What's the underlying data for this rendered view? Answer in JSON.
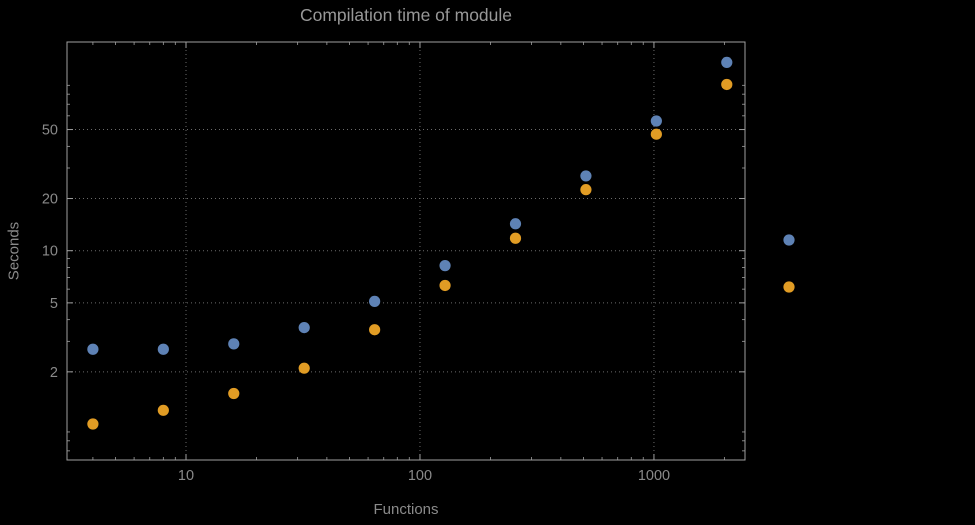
{
  "colors": {
    "background": "#000000",
    "frame": "#a0a0a0",
    "grid": "#6b6b6b",
    "tick_text": "#8a8a8a",
    "title_text": "#989898",
    "series_blue": "#5e82b5",
    "series_orange": "#e19c24"
  },
  "chart_data": {
    "type": "scatter",
    "title": "Compilation time of module",
    "xlabel": "Functions",
    "ylabel": "Seconds",
    "xscale": "log",
    "yscale": "log",
    "xlim": [
      3.1,
      2450
    ],
    "ylim": [
      0.62,
      160
    ],
    "xticks": [
      10,
      100,
      1000
    ],
    "yticks": [
      2,
      5,
      10,
      20,
      50
    ],
    "grid": "dotted",
    "legend_position": "right",
    "x": [
      4,
      8,
      16,
      32,
      64,
      128,
      256,
      512,
      1024,
      2048
    ],
    "series": [
      {
        "name": "blue",
        "color": "#5e82b5",
        "values": [
          2.7,
          2.7,
          2.9,
          3.6,
          5.1,
          8.2,
          14.3,
          27,
          56,
          122
        ]
      },
      {
        "name": "orange",
        "color": "#e19c24",
        "values": [
          1.0,
          1.2,
          1.5,
          2.1,
          3.5,
          6.3,
          11.8,
          22.5,
          47,
          91
        ]
      }
    ],
    "legend_markers": [
      {
        "series": "blue",
        "color": "#5e82b5"
      },
      {
        "series": "orange",
        "color": "#e19c24"
      }
    ]
  }
}
